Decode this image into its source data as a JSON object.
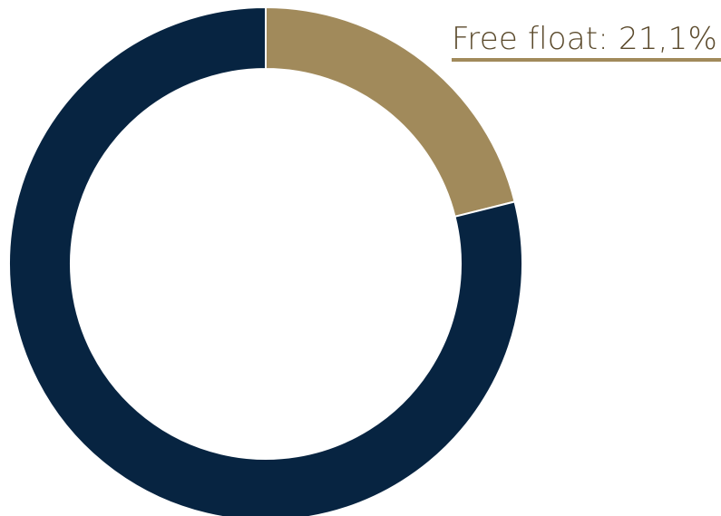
{
  "chart_data": {
    "type": "pie",
    "style": "donut",
    "slices": [
      {
        "label": "Free float",
        "value": 21.1,
        "color": "#a18a5b"
      },
      {
        "label": "",
        "value": 78.9,
        "color": "#072441"
      }
    ],
    "annotations": [
      {
        "text": "Free float: 21,1%",
        "slice": "Free float",
        "placement": "top-right",
        "underline": true
      }
    ],
    "legend": false
  }
}
